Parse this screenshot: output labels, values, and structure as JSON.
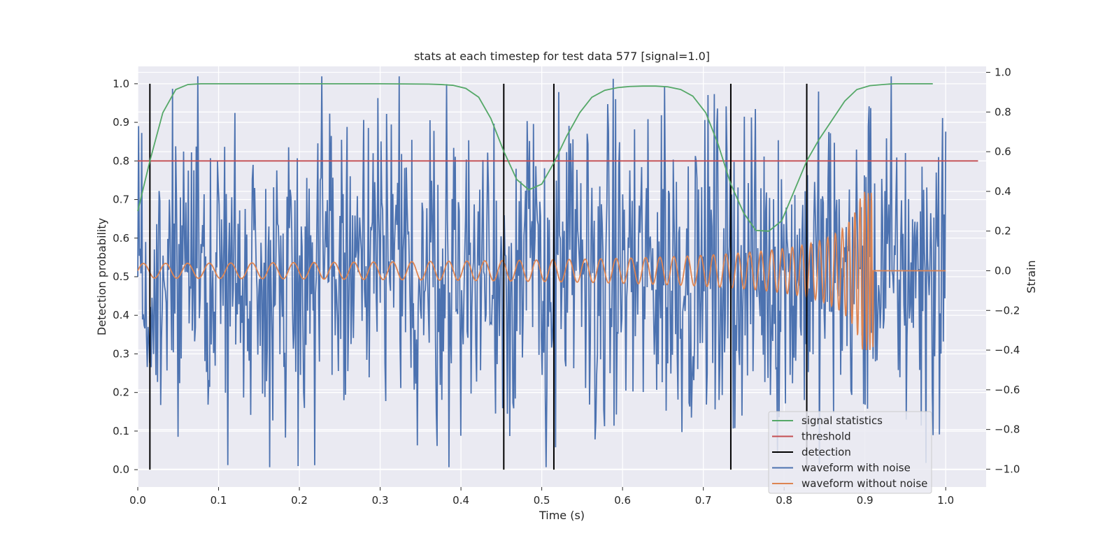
{
  "chart_data": {
    "type": "line",
    "title": "stats at each timestep for test data 577 [signal=1.0]",
    "xlabel": "Time (s)",
    "ylabel": "Detection probability",
    "ylabel_right": "Strain",
    "xlim": [
      0.0,
      1.05
    ],
    "ylim": [
      -0.045,
      1.045
    ],
    "ylim_right": [
      -1.09,
      1.03
    ],
    "x_ticks": [
      0.0,
      0.1,
      0.2,
      0.3,
      0.4,
      0.5,
      0.6,
      0.7,
      0.8,
      0.9,
      1.0
    ],
    "x_tick_labels": [
      "0.0",
      "0.1",
      "0.2",
      "0.3",
      "0.4",
      "0.5",
      "0.6",
      "0.7",
      "0.8",
      "0.9",
      "1.0"
    ],
    "y_ticks": [
      0.0,
      0.1,
      0.2,
      0.3,
      0.4,
      0.5,
      0.6,
      0.7,
      0.8,
      0.9,
      1.0
    ],
    "y_tick_labels": [
      "0.0",
      "0.1",
      "0.2",
      "0.3",
      "0.4",
      "0.5",
      "0.6",
      "0.7",
      "0.8",
      "0.9",
      "1.0"
    ],
    "y_right_ticks": [
      -1.0,
      -0.8,
      -0.6,
      -0.4,
      -0.2,
      0.0,
      0.2,
      0.4,
      0.6,
      0.8,
      1.0
    ],
    "y_right_tick_labels": [
      "−1.0",
      "−0.8",
      "−0.6",
      "−0.4",
      "−0.2",
      "0.0",
      "0.2",
      "0.4",
      "0.6",
      "0.8",
      "1.0"
    ],
    "grid": true,
    "legend_position": "bottom-right",
    "legend": [
      {
        "label": "signal statistics",
        "color": "#55a868"
      },
      {
        "label": "threshold",
        "color": "#c44e52"
      },
      {
        "label": "detection",
        "color": "#000000"
      },
      {
        "label": "waveform with noise",
        "color": "#4c72b0"
      },
      {
        "label": "waveform without noise",
        "color": "#dd8452"
      }
    ],
    "colors": {
      "background": "#eaeaf2",
      "grid": "#ffffff",
      "signal_statistics": "#55a868",
      "threshold": "#c44e52",
      "detection": "#000000",
      "waveform_noise": "#4c72b0",
      "waveform_clean": "#dd8452"
    },
    "signal_statistics": {
      "x": [
        0.0,
        0.015,
        0.031,
        0.047,
        0.062,
        0.078,
        0.094,
        0.11,
        0.2,
        0.3,
        0.36,
        0.375,
        0.39,
        0.406,
        0.422,
        0.437,
        0.453,
        0.469,
        0.484,
        0.5,
        0.515,
        0.531,
        0.547,
        0.562,
        0.578,
        0.594,
        0.609,
        0.625,
        0.641,
        0.656,
        0.672,
        0.687,
        0.703,
        0.718,
        0.734,
        0.75,
        0.765,
        0.781,
        0.797,
        0.812,
        0.828,
        0.843,
        0.859,
        0.875,
        0.89,
        0.906,
        0.922,
        0.937,
        0.953,
        0.969,
        0.984
      ],
      "y": [
        0.67,
        0.8,
        0.925,
        0.985,
        0.998,
        1.0,
        1.0,
        1.0,
        1.0,
        1.0,
        0.999,
        0.998,
        0.996,
        0.988,
        0.965,
        0.91,
        0.825,
        0.752,
        0.725,
        0.74,
        0.795,
        0.865,
        0.925,
        0.965,
        0.983,
        0.99,
        0.993,
        0.994,
        0.994,
        0.992,
        0.985,
        0.968,
        0.925,
        0.845,
        0.74,
        0.665,
        0.62,
        0.618,
        0.645,
        0.72,
        0.8,
        0.855,
        0.905,
        0.955,
        0.985,
        0.995,
        0.998,
        1.0,
        1.0,
        1.0,
        1.0
      ]
    },
    "threshold": {
      "value": 0.8,
      "x_range": [
        0.0,
        1.04
      ]
    },
    "detections": [
      0.015,
      0.453,
      0.515,
      0.734,
      0.828
    ],
    "waveform_noise": {
      "x_range": [
        0.0,
        1.0
      ],
      "approx_std": 0.4,
      "notable_points": [
        {
          "x": 0.219,
          "y": -0.98
        },
        {
          "x": 0.252,
          "y": 0.66
        },
        {
          "x": 0.28,
          "y": 0.76
        },
        {
          "x": 0.297,
          "y": 0.87
        },
        {
          "x": 0.346,
          "y": -0.88
        },
        {
          "x": 0.49,
          "y": 0.74
        },
        {
          "x": 0.505,
          "y": -1.0
        },
        {
          "x": 0.566,
          "y": -0.85
        },
        {
          "x": 0.652,
          "y": 0.93
        },
        {
          "x": 0.685,
          "y": -0.74
        },
        {
          "x": 0.907,
          "y": 0.82
        },
        {
          "x": 0.996,
          "y": 0.77
        }
      ]
    },
    "waveform_clean": {
      "x_range": [
        0.0,
        1.0
      ],
      "merger_time": 0.91,
      "initial_amplitude": 0.035,
      "peak_amplitude": 0.4,
      "initial_cycles_per_second": 36
    }
  }
}
